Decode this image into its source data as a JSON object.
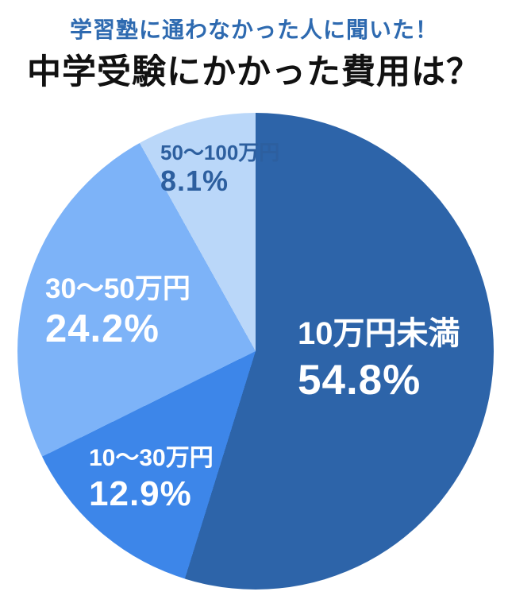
{
  "header": {
    "subtitle": "学習塾に通わなかった人に聞いた！",
    "title": "中学受験にかかった費用は？"
  },
  "chart_data": {
    "type": "pie",
    "title": "中学受験にかかった費用は？",
    "subtitle": "学習塾に通わなかった人に聞いた！",
    "start_angle_deg": 0,
    "direction": "clockwise",
    "legend_position": "none",
    "slices": [
      {
        "label": "10万円未満",
        "value": 54.8,
        "value_label": "54.8%",
        "color": "#2d64a9",
        "text_color": "#ffffff"
      },
      {
        "label": "10〜30万円",
        "value": 12.9,
        "value_label": "12.9%",
        "color": "#3d86e9",
        "text_color": "#ffffff"
      },
      {
        "label": "30〜50万円",
        "value": 24.2,
        "value_label": "24.2%",
        "color": "#7db3f8",
        "text_color": "#ffffff"
      },
      {
        "label": "50〜100万円",
        "value": 8.1,
        "value_label": "8.1%",
        "color": "#bad7f9",
        "text_color": "#2d5f9f"
      }
    ]
  },
  "colors": {
    "subtitle_text": "#2e6ab0",
    "title_text": "#111111",
    "background": "#ffffff"
  }
}
